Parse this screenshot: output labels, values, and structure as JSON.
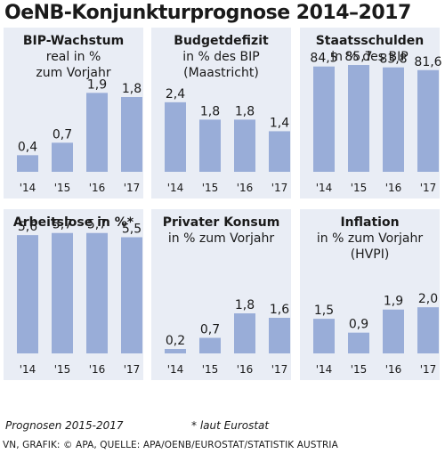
{
  "title": "OeNB-Konjunkturprognose 2014–2017",
  "chart_data": [
    {
      "type": "bar",
      "title_lines": [
        "BIP-Wachstum",
        "real in %",
        "zum Vorjahr"
      ],
      "categories": [
        "'14",
        "'15",
        "'16",
        "'17"
      ],
      "values": [
        0.4,
        0.7,
        1.9,
        1.8
      ],
      "labels": [
        "0,4",
        "0,7",
        "1,9",
        "1,8"
      ],
      "ylim": [
        0,
        3.0
      ]
    },
    {
      "type": "bar",
      "title_lines": [
        "Budgetdefizit",
        "in % des BIP",
        "(Maastricht)"
      ],
      "categories": [
        "'14",
        "'15",
        "'16",
        "'17"
      ],
      "values": [
        2.4,
        1.8,
        1.8,
        1.4
      ],
      "labels": [
        "2,4",
        "1,8",
        "1,8",
        "1,4"
      ],
      "ylim": [
        0,
        4.3
      ]
    },
    {
      "type": "bar",
      "title_lines": [
        "Staatsschulden",
        "in % des BIP"
      ],
      "categories": [
        "'14",
        "'15",
        "'16",
        "'17"
      ],
      "values": [
        84.5,
        85.7,
        83.8,
        81.6
      ],
      "labels": [
        "84,5",
        "85,7",
        "83,8",
        "81,6"
      ],
      "ylim": [
        0,
        100
      ]
    },
    {
      "type": "bar",
      "title_lines": [
        "Arbeitslose in %*"
      ],
      "categories": [
        "'14",
        "'15",
        "'16",
        "'17"
      ],
      "values": [
        5.6,
        5.7,
        5.7,
        5.5
      ],
      "labels": [
        "5,6",
        "5,7",
        "5,7",
        "5,5"
      ],
      "ylim": [
        0,
        5.9
      ]
    },
    {
      "type": "bar",
      "title_lines": [
        "Privater Konsum",
        "in % zum Vorjahr"
      ],
      "categories": [
        "'14",
        "'15",
        "'16",
        "'17"
      ],
      "values": [
        0.2,
        0.7,
        1.8,
        1.6
      ],
      "labels": [
        "0,2",
        "0,7",
        "1,8",
        "1,6"
      ],
      "ylim": [
        0,
        5.6
      ]
    },
    {
      "type": "bar",
      "title_lines": [
        "Inflation",
        "in % zum Vorjahr",
        "(HVPI)"
      ],
      "categories": [
        "'14",
        "'15",
        "'16",
        "'17"
      ],
      "values": [
        1.5,
        0.9,
        1.9,
        2.0
      ],
      "labels": [
        "1,5",
        "0,9",
        "1,9",
        "2,0"
      ],
      "ylim": [
        0,
        5.4
      ]
    }
  ],
  "footnote_left": "Prognosen 2015-2017",
  "footnote_right": "* laut Eurostat",
  "source": "VN, GRAFIK: © APA, QUELLE: APA/OENB/EUROSTAT/STATISTIK AUSTRIA",
  "colors": {
    "bar": "#99add8",
    "panel": "#e9edf5"
  }
}
